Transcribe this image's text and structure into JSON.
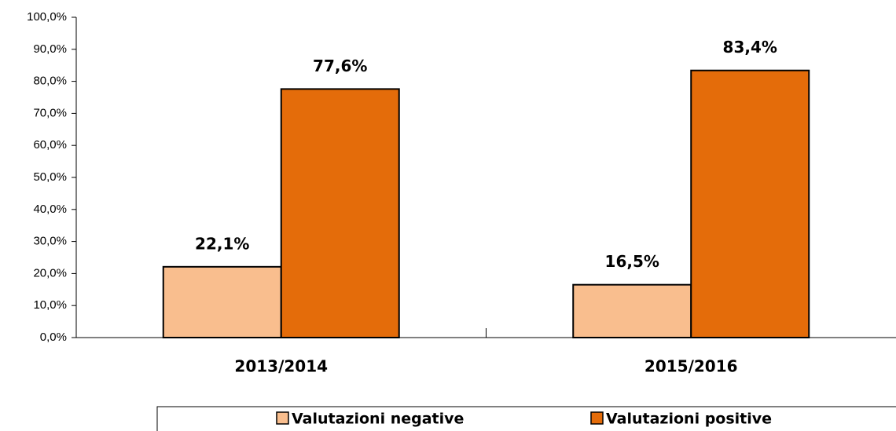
{
  "chart_data": {
    "type": "bar",
    "categories": [
      "2013/2014",
      "2015/2016"
    ],
    "series": [
      {
        "name": "Valutazioni negative",
        "color": "#f9be8e",
        "values": [
          22.1,
          16.5
        ],
        "value_labels": [
          "22,1%",
          "16,5%"
        ]
      },
      {
        "name": "Valutazioni positive",
        "color": "#e46c0a",
        "values": [
          77.6,
          83.4
        ],
        "value_labels": [
          "77,6%",
          "83,4%"
        ]
      }
    ],
    "ylim": [
      0,
      100
    ],
    "yticks": [
      {
        "value": 0,
        "label": "0,0%"
      },
      {
        "value": 10,
        "label": "10,0%"
      },
      {
        "value": 20,
        "label": "20,0%"
      },
      {
        "value": 30,
        "label": "30,0%"
      },
      {
        "value": 40,
        "label": "40,0%"
      },
      {
        "value": 50,
        "label": "50,0%"
      },
      {
        "value": 60,
        "label": "60,0%"
      },
      {
        "value": 70,
        "label": "70,0%"
      },
      {
        "value": 80,
        "label": "80,0%"
      },
      {
        "value": 90,
        "label": "90,0%"
      },
      {
        "value": 100,
        "label": "100,0%"
      }
    ],
    "grid": false,
    "legend": "bottom"
  }
}
